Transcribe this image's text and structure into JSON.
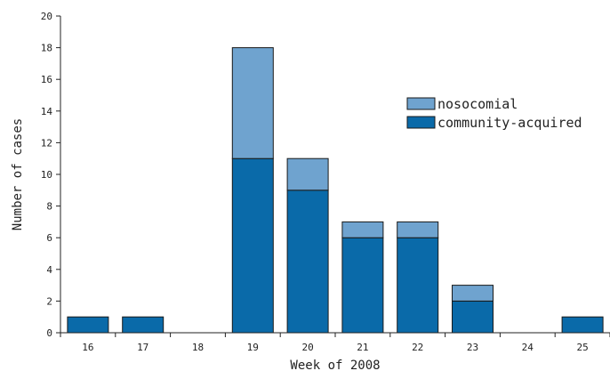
{
  "chart_data": {
    "type": "bar",
    "stacked": true,
    "title": "",
    "xlabel": "Week of 2008",
    "ylabel": "Number of cases",
    "categories": [
      "16",
      "17",
      "18",
      "19",
      "20",
      "21",
      "22",
      "23",
      "24",
      "25"
    ],
    "series": [
      {
        "name": "community-acquired",
        "color": "#0a6aa9",
        "values": [
          1,
          1,
          0,
          11,
          9,
          6,
          6,
          2,
          0,
          1
        ]
      },
      {
        "name": "nosocomial",
        "color": "#6fa3cf",
        "values": [
          0,
          0,
          0,
          7,
          2,
          1,
          1,
          1,
          0,
          0
        ]
      }
    ],
    "ylim": [
      0,
      20
    ],
    "yticks": [
      0,
      2,
      4,
      6,
      8,
      10,
      12,
      14,
      16,
      18,
      20
    ],
    "grid": false,
    "legend": {
      "position": "top-right",
      "entries": [
        "nosocomial",
        "community-acquired"
      ]
    }
  }
}
